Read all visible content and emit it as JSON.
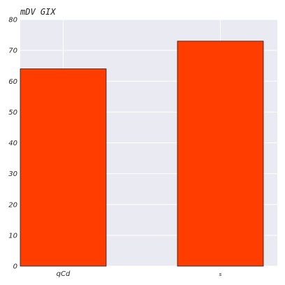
{
  "chart_data": {
    "type": "bar",
    "title": "mDV GIX",
    "xlabel": "",
    "ylabel": "",
    "categories": [
      "qCd",
      "s"
    ],
    "values": [
      64,
      73
    ],
    "ylim": [
      0,
      80
    ],
    "yticks": [
      0,
      10,
      20,
      30,
      40,
      50,
      60,
      70,
      80
    ],
    "grid": true,
    "legend": "none",
    "colors": {
      "bar": "#ff3d00",
      "bar_edge": "#1a1a1a",
      "plot_background": "#eaeaf2",
      "grid": "#ffffff"
    }
  }
}
